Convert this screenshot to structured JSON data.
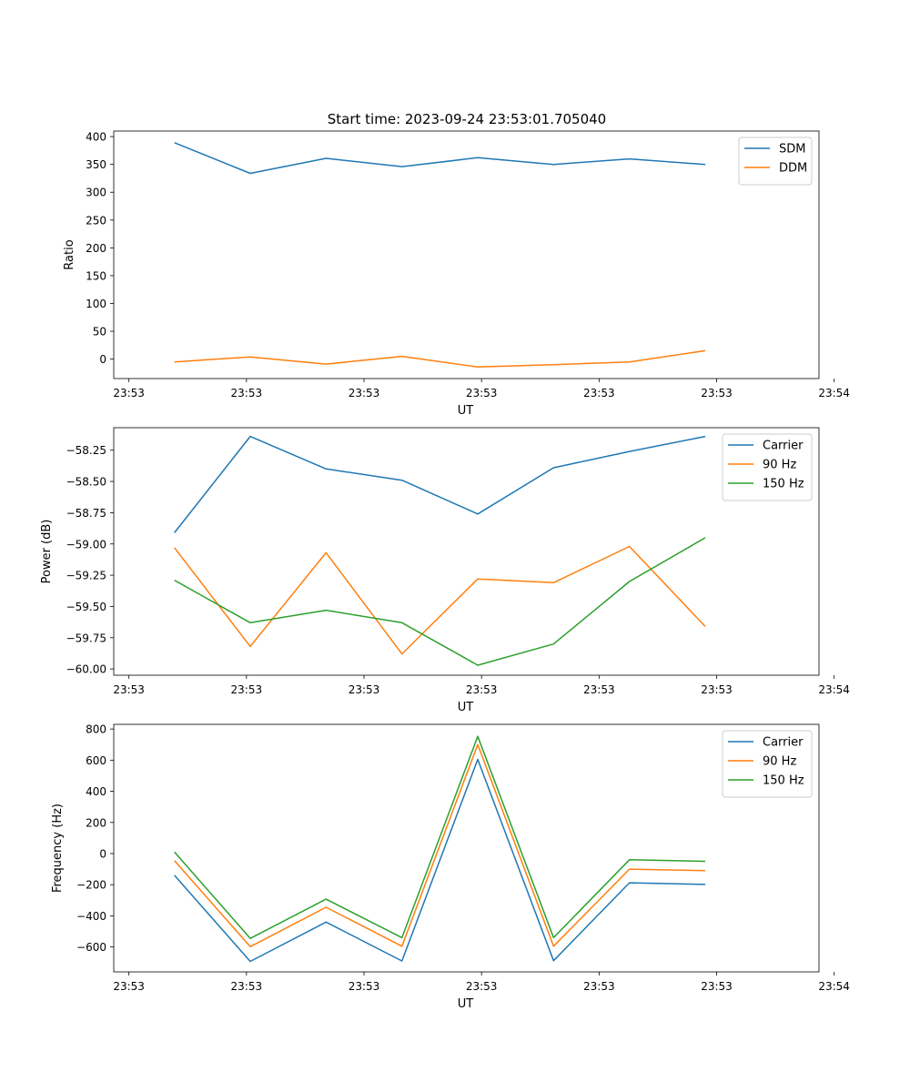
{
  "suptitle": "Start time: 2023-09-24 23:53:01.705040",
  "colors": {
    "blue": "#1f77b4",
    "orange": "#ff7f0e",
    "green": "#2ca02c"
  },
  "chart_data": [
    {
      "type": "line",
      "title": "Start time: 2023-09-24 23:53:01.705040",
      "xlabel": "UT",
      "ylabel": "Ratio",
      "x": [
        1,
        2,
        3,
        4,
        5,
        6,
        7,
        8
      ],
      "xlim": [
        0.2,
        9.5
      ],
      "xticks": [
        0.4,
        1.95,
        3.5,
        5.05,
        6.6,
        8.15,
        9.7
      ],
      "xtick_labels": [
        "23:53",
        "23:53",
        "23:53",
        "23:53",
        "23:53",
        "23:53",
        "23:54"
      ],
      "ylim": [
        -35,
        410
      ],
      "yticks": [
        0,
        50,
        100,
        150,
        200,
        250,
        300,
        350,
        400
      ],
      "ytick_labels": [
        "0",
        "50",
        "100",
        "150",
        "200",
        "250",
        "300",
        "350",
        "400"
      ],
      "legend": "top-right",
      "series": [
        {
          "name": "SDM",
          "color": "#1f77b4",
          "values": [
            389,
            334,
            361,
            346,
            362,
            350,
            360,
            350
          ]
        },
        {
          "name": "DDM",
          "color": "#ff7f0e",
          "values": [
            -5,
            4,
            -9,
            5,
            -14,
            -10,
            -5,
            15
          ]
        }
      ]
    },
    {
      "type": "line",
      "xlabel": "UT",
      "ylabel": "Power (dB)",
      "x": [
        1,
        2,
        3,
        4,
        5,
        6,
        7,
        8
      ],
      "xlim": [
        0.2,
        9.5
      ],
      "xticks": [
        0.4,
        1.95,
        3.5,
        5.05,
        6.6,
        8.15,
        9.7
      ],
      "xtick_labels": [
        "23:53",
        "23:53",
        "23:53",
        "23:53",
        "23:53",
        "23:53",
        "23:54"
      ],
      "ylim": [
        -60.05,
        -58.07
      ],
      "yticks": [
        -60.0,
        -59.75,
        -59.5,
        -59.25,
        -59.0,
        -58.75,
        -58.5,
        -58.25
      ],
      "ytick_labels": [
        "−60.00",
        "−59.75",
        "−59.50",
        "−59.25",
        "−59.00",
        "−58.75",
        "−58.50",
        "−58.25"
      ],
      "legend": "top-right",
      "series": [
        {
          "name": "Carrier",
          "color": "#1f77b4",
          "values": [
            -58.91,
            -58.14,
            -58.4,
            -58.49,
            -58.76,
            -58.39,
            -58.26,
            -58.14
          ]
        },
        {
          "name": "90 Hz",
          "color": "#ff7f0e",
          "values": [
            -59.03,
            -59.82,
            -59.07,
            -59.88,
            -59.28,
            -59.31,
            -59.02,
            -59.66
          ]
        },
        {
          "name": "150 Hz",
          "color": "#2ca02c",
          "values": [
            -59.29,
            -59.63,
            -59.53,
            -59.63,
            -59.97,
            -59.8,
            -59.3,
            -58.95
          ]
        }
      ]
    },
    {
      "type": "line",
      "xlabel": "UT",
      "ylabel": "Frequency (Hz)",
      "x": [
        1,
        2,
        3,
        4,
        5,
        6,
        7,
        8
      ],
      "xlim": [
        0.2,
        9.5
      ],
      "xticks": [
        0.4,
        1.95,
        3.5,
        5.05,
        6.6,
        8.15,
        9.7
      ],
      "xtick_labels": [
        "23:53",
        "23:53",
        "23:53",
        "23:53",
        "23:53",
        "23:53",
        "23:54"
      ],
      "ylim": [
        -760,
        830
      ],
      "yticks": [
        -600,
        -400,
        -200,
        0,
        200,
        400,
        600,
        800
      ],
      "ytick_labels": [
        "−600",
        "−400",
        "−200",
        "0",
        "200",
        "400",
        "600",
        "800"
      ],
      "legend": "top-right",
      "series": [
        {
          "name": "Carrier",
          "color": "#1f77b4",
          "values": [
            -140,
            -693,
            -440,
            -690,
            605,
            -688,
            -188,
            -198
          ]
        },
        {
          "name": "90 Hz",
          "color": "#ff7f0e",
          "values": [
            -45,
            -598,
            -345,
            -595,
            700,
            -595,
            -100,
            -110
          ]
        },
        {
          "name": "150 Hz",
          "color": "#2ca02c",
          "values": [
            10,
            -545,
            -293,
            -540,
            753,
            -540,
            -40,
            -50
          ]
        }
      ]
    }
  ]
}
